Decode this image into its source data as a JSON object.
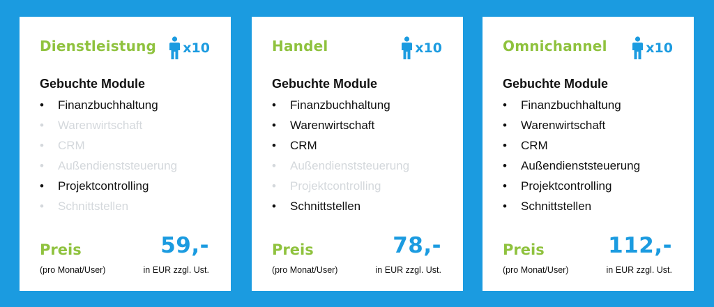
{
  "colors": {
    "background": "#1b9be0",
    "card": "#ffffff",
    "accent_green": "#8fc23e",
    "accent_blue": "#1b9be0",
    "active_text": "#111111",
    "inactive_text": "#d4d8dc"
  },
  "cards": [
    {
      "title": "Dienstleistung",
      "users_icon": "person-icon",
      "users": "x10",
      "modules_heading": "Gebuchte Module",
      "modules": [
        {
          "label": "Finanzbuchhaltung",
          "active": true
        },
        {
          "label": "Warenwirtschaft",
          "active": false
        },
        {
          "label": "CRM",
          "active": false
        },
        {
          "label": "Außendienststeuerung",
          "active": false
        },
        {
          "label": "Projektcontrolling",
          "active": true
        },
        {
          "label": "Schnittstellen",
          "active": false
        }
      ],
      "price_label": "Preis",
      "price": "59,-",
      "price_note_left": "(pro Monat/User)",
      "price_note_right": "in EUR zzgl. Ust."
    },
    {
      "title": "Handel",
      "users_icon": "person-icon",
      "users": "x10",
      "modules_heading": "Gebuchte Module",
      "modules": [
        {
          "label": "Finanzbuchhaltung",
          "active": true
        },
        {
          "label": "Warenwirtschaft",
          "active": true
        },
        {
          "label": "CRM",
          "active": true
        },
        {
          "label": "Außendienststeuerung",
          "active": false
        },
        {
          "label": "Projektcontrolling",
          "active": false
        },
        {
          "label": "Schnittstellen",
          "active": true
        }
      ],
      "price_label": "Preis",
      "price": "78,-",
      "price_note_left": "(pro Monat/User)",
      "price_note_right": "in EUR zzgl. Ust."
    },
    {
      "title": "Omnichannel",
      "users_icon": "person-icon",
      "users": "x10",
      "modules_heading": "Gebuchte Module",
      "modules": [
        {
          "label": "Finanzbuchhaltung",
          "active": true
        },
        {
          "label": "Warenwirtschaft",
          "active": true
        },
        {
          "label": "CRM",
          "active": true
        },
        {
          "label": "Außendienststeuerung",
          "active": true
        },
        {
          "label": "Projektcontrolling",
          "active": true
        },
        {
          "label": "Schnittstellen",
          "active": true
        }
      ],
      "price_label": "Preis",
      "price": "112,-",
      "price_note_left": "(pro Monat/User)",
      "price_note_right": "in EUR zzgl. Ust."
    }
  ]
}
